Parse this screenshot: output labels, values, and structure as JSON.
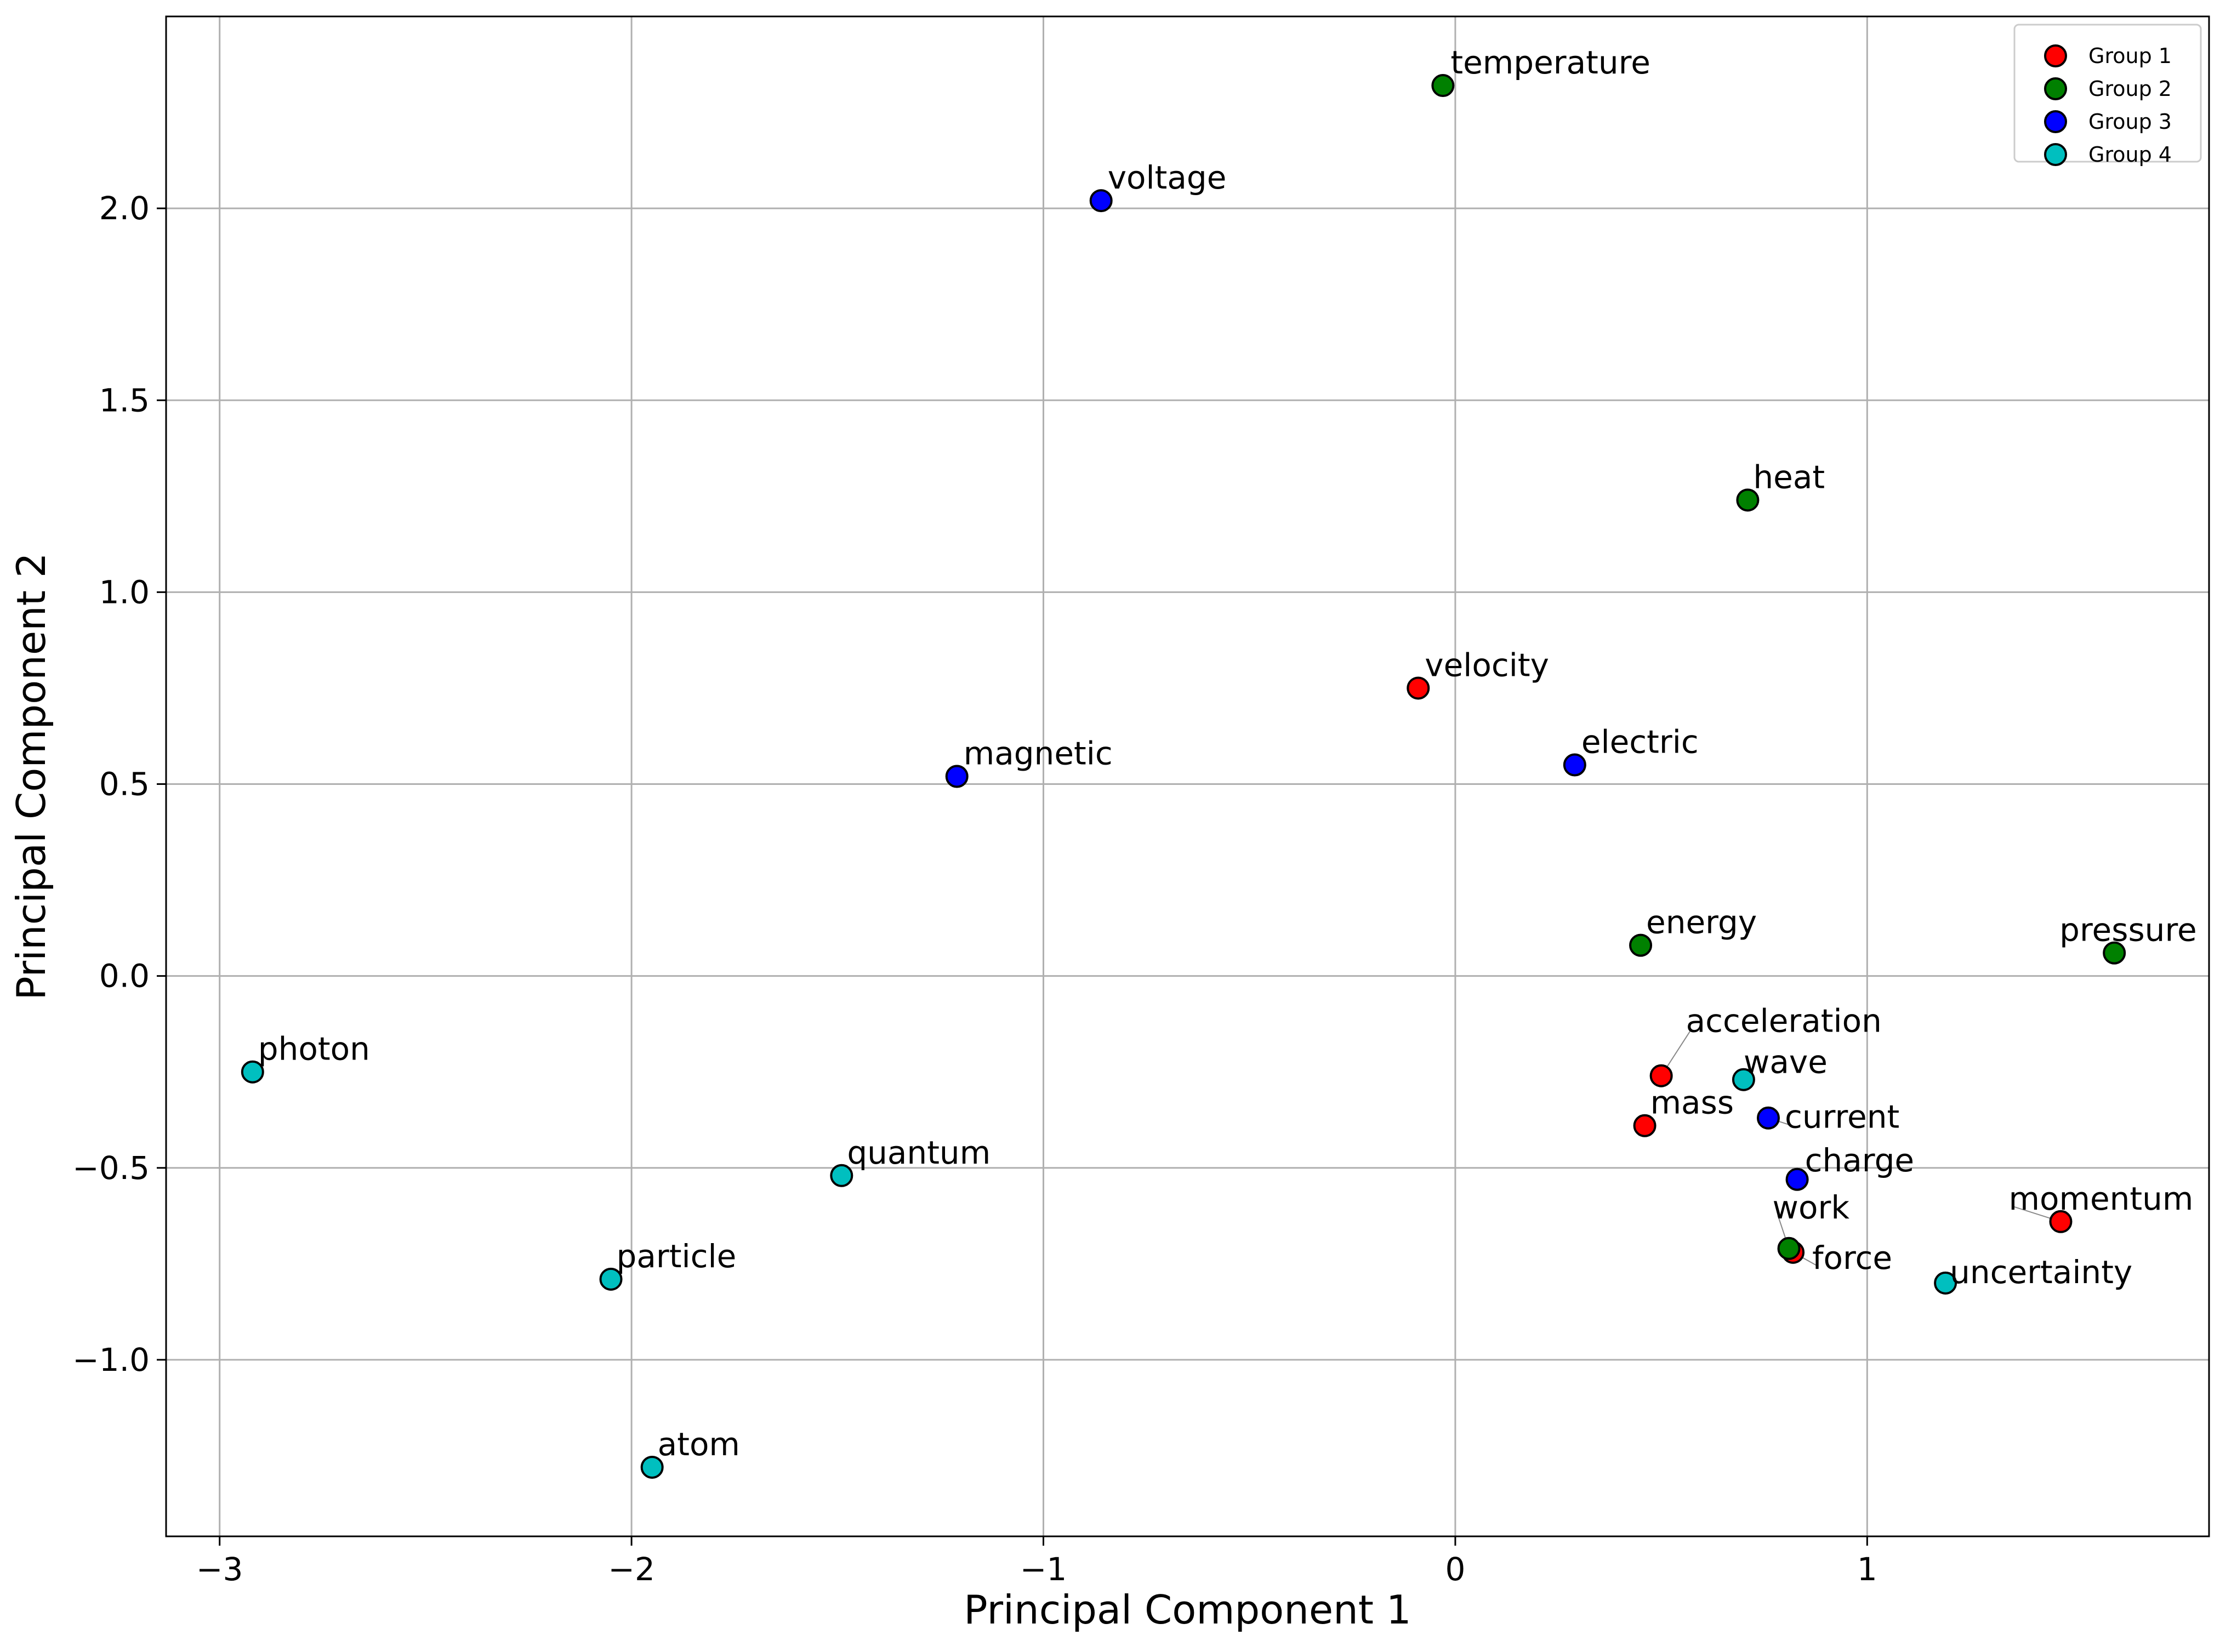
{
  "chart_data": {
    "type": "scatter",
    "title": "",
    "xlabel": "Principal Component 1",
    "ylabel": "Principal Component 2",
    "xlim": [
      -3.13,
      1.83
    ],
    "ylim": [
      -1.46,
      2.5
    ],
    "grid": true,
    "legend_position": "top-right",
    "xticks": [
      {
        "value": -3,
        "label": "−3"
      },
      {
        "value": -2,
        "label": "−2"
      },
      {
        "value": -1,
        "label": "−1"
      },
      {
        "value": 0,
        "label": "0"
      },
      {
        "value": 1,
        "label": "1"
      }
    ],
    "yticks": [
      {
        "value": -1.0,
        "label": "−1.0"
      },
      {
        "value": -0.5,
        "label": "−0.5"
      },
      {
        "value": 0.0,
        "label": "0.0"
      },
      {
        "value": 0.5,
        "label": "0.5"
      },
      {
        "value": 1.0,
        "label": "1.0"
      },
      {
        "value": 1.5,
        "label": "1.5"
      },
      {
        "value": 2.0,
        "label": "2.0"
      }
    ],
    "series": [
      {
        "name": "Group 1",
        "color": "#ff0000",
        "points": [
          {
            "label": "velocity",
            "x": -0.09,
            "y": 0.75
          },
          {
            "label": "acceleration",
            "x": 0.5,
            "y": -0.26
          },
          {
            "label": "mass",
            "x": 0.46,
            "y": -0.39
          },
          {
            "label": "force",
            "x": 0.82,
            "y": -0.72
          },
          {
            "label": "momentum",
            "x": 1.47,
            "y": -0.64
          }
        ]
      },
      {
        "name": "Group 2",
        "color": "#008000",
        "points": [
          {
            "label": "temperature",
            "x": -0.03,
            "y": 2.32
          },
          {
            "label": "heat",
            "x": 0.71,
            "y": 1.24
          },
          {
            "label": "energy",
            "x": 0.45,
            "y": 0.08
          },
          {
            "label": "pressure",
            "x": 1.6,
            "y": 0.06
          },
          {
            "label": "work",
            "x": 0.81,
            "y": -0.71
          }
        ]
      },
      {
        "name": "Group 3",
        "color": "#0000ff",
        "points": [
          {
            "label": "voltage",
            "x": -0.86,
            "y": 2.02
          },
          {
            "label": "magnetic",
            "x": -1.21,
            "y": 0.52
          },
          {
            "label": "electric",
            "x": 0.29,
            "y": 0.55
          },
          {
            "label": "current",
            "x": 0.76,
            "y": -0.37
          },
          {
            "label": "charge",
            "x": 0.83,
            "y": -0.53
          }
        ]
      },
      {
        "name": "Group 4",
        "color": "#00bfbf",
        "points": [
          {
            "label": "photon",
            "x": -2.92,
            "y": -0.25
          },
          {
            "label": "quantum",
            "x": -1.49,
            "y": -0.52
          },
          {
            "label": "particle",
            "x": -2.05,
            "y": -0.79
          },
          {
            "label": "atom",
            "x": -1.95,
            "y": -1.28
          },
          {
            "label": "wave",
            "x": 0.7,
            "y": -0.27
          },
          {
            "label": "uncertainty",
            "x": 1.19,
            "y": -0.8
          }
        ]
      }
    ]
  }
}
